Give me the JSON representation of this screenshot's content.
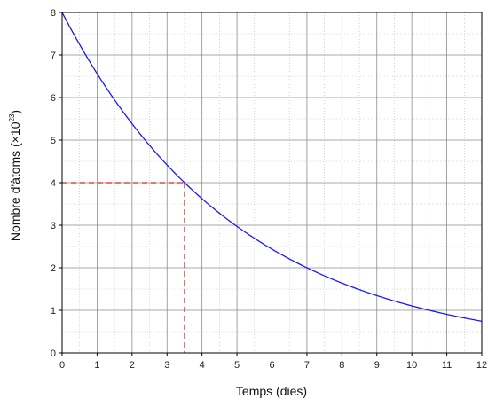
{
  "chart_data": {
    "type": "line",
    "xlabel": "Temps (dies)",
    "ylabel_base": "Nombre d'àtoms (×10",
    "ylabel_exp": "23",
    "ylabel_close": ")",
    "xlim": [
      0,
      12
    ],
    "ylim": [
      0,
      8
    ],
    "x_ticks": [
      "0",
      "1",
      "2",
      "3",
      "4",
      "5",
      "6",
      "7",
      "8",
      "9",
      "10",
      "11",
      "12"
    ],
    "y_ticks": [
      "0",
      "1",
      "2",
      "3",
      "4",
      "5",
      "6",
      "7",
      "8"
    ],
    "grid": true,
    "minor_grid": true,
    "series": [
      {
        "color": "#1a1aff",
        "function": "N0 * 2^(-t / half_life)",
        "N0": 8,
        "half_life": 3.5,
        "samples": [
          {
            "x": 0,
            "y": 8
          },
          {
            "x": 1,
            "y": 6.56
          },
          {
            "x": 2,
            "y": 5.38
          },
          {
            "x": 3,
            "y": 4.41
          },
          {
            "x": 3.5,
            "y": 4
          },
          {
            "x": 4,
            "y": 3.62
          },
          {
            "x": 5,
            "y": 2.97
          },
          {
            "x": 6,
            "y": 2.44
          },
          {
            "x": 7,
            "y": 2.0
          },
          {
            "x": 8,
            "y": 1.64
          },
          {
            "x": 9,
            "y": 1.34
          },
          {
            "x": 10,
            "y": 1.1
          },
          {
            "x": 11,
            "y": 0.9
          },
          {
            "x": 12,
            "y": 0.74
          }
        ]
      }
    ],
    "annotation": {
      "color": "#e02020",
      "style": "dashed",
      "x": 3.5,
      "y": 4
    }
  }
}
